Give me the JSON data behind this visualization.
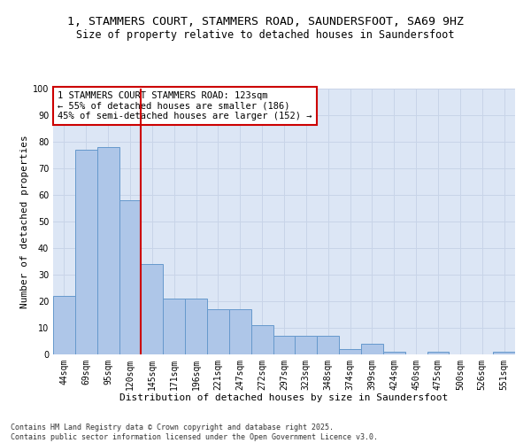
{
  "title_line1": "1, STAMMERS COURT, STAMMERS ROAD, SAUNDERSFOOT, SA69 9HZ",
  "title_line2": "Size of property relative to detached houses in Saundersfoot",
  "xlabel": "Distribution of detached houses by size in Saundersfoot",
  "ylabel": "Number of detached properties",
  "categories": [
    "44sqm",
    "69sqm",
    "95sqm",
    "120sqm",
    "145sqm",
    "171sqm",
    "196sqm",
    "221sqm",
    "247sqm",
    "272sqm",
    "297sqm",
    "323sqm",
    "348sqm",
    "374sqm",
    "399sqm",
    "424sqm",
    "450sqm",
    "475sqm",
    "500sqm",
    "526sqm",
    "551sqm"
  ],
  "values": [
    22,
    77,
    78,
    58,
    34,
    21,
    21,
    17,
    17,
    11,
    7,
    7,
    7,
    2,
    4,
    1,
    0,
    1,
    0,
    0,
    1
  ],
  "bar_color": "#aec6e8",
  "bar_edge_color": "#6699cc",
  "bar_edge_width": 0.7,
  "vline_color": "#cc0000",
  "vline_x_index": 3,
  "annotation_text": "1 STAMMERS COURT STAMMERS ROAD: 123sqm\n← 55% of detached houses are smaller (186)\n45% of semi-detached houses are larger (152) →",
  "annotation_box_color": "#ffffff",
  "annotation_box_edge_color": "#cc0000",
  "ylim": [
    0,
    100
  ],
  "yticks": [
    0,
    10,
    20,
    30,
    40,
    50,
    60,
    70,
    80,
    90,
    100
  ],
  "grid_color": "#c8d4e8",
  "background_color": "#dce6f5",
  "footer_text": "Contains HM Land Registry data © Crown copyright and database right 2025.\nContains public sector information licensed under the Open Government Licence v3.0.",
  "title_fontsize": 9.5,
  "subtitle_fontsize": 8.5,
  "axis_label_fontsize": 8,
  "tick_fontsize": 7,
  "annotation_fontsize": 7.5,
  "footer_fontsize": 6
}
